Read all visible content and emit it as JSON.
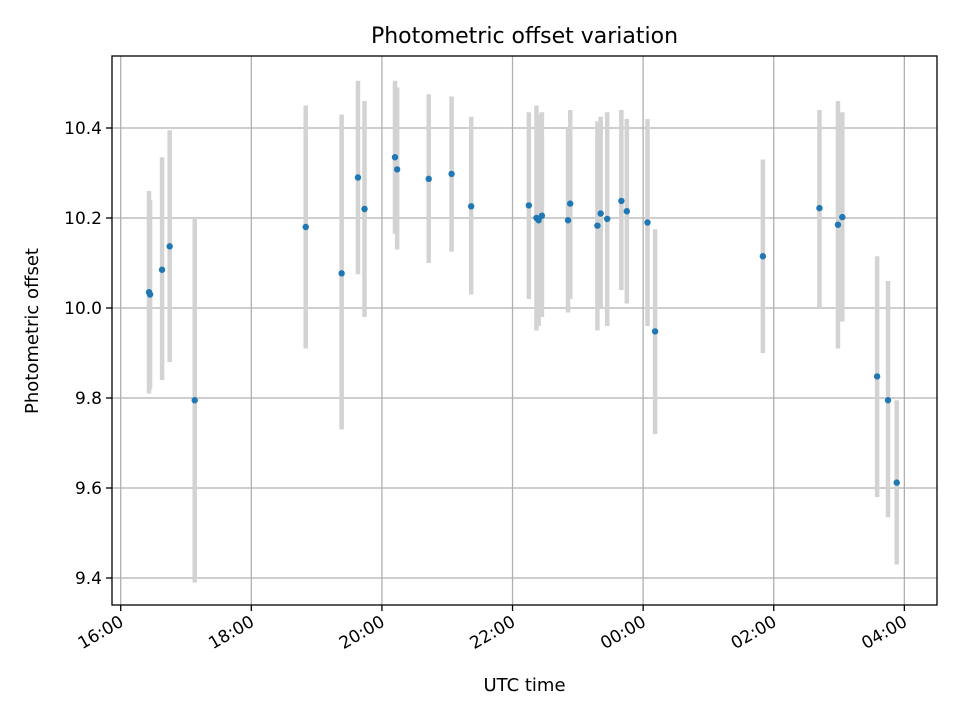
{
  "chart_data": {
    "type": "scatter",
    "title": "Photometric offset variation",
    "xlabel": "UTC time",
    "ylabel": "Photometric offset",
    "x_unit": "UTC time (hh:mm); a value past 24:00 falls on the following day",
    "xlim": [
      "15:52",
      "28:30"
    ],
    "ylim": [
      9.34,
      10.56
    ],
    "x_ticks": [
      "16:00",
      "18:00",
      "20:00",
      "22:00",
      "00:00",
      "02:00",
      "04:00"
    ],
    "y_ticks": [
      "9.4",
      "9.6",
      "9.8",
      "10.0",
      "10.2",
      "10.4"
    ],
    "grid": true,
    "colors": {
      "point": "#1f77b4",
      "errorbar": "#d3d3d3",
      "grid": "#b0b0b0"
    },
    "points": [
      {
        "x": "16:26",
        "y": 10.035,
        "low": 9.81,
        "high": 10.26
      },
      {
        "x": "16:27",
        "y": 10.03,
        "low": 9.82,
        "high": 10.24
      },
      {
        "x": "16:38",
        "y": 10.085,
        "low": 9.84,
        "high": 10.335
      },
      {
        "x": "16:45",
        "y": 10.137,
        "low": 9.88,
        "high": 10.395
      },
      {
        "x": "17:08",
        "y": 9.795,
        "low": 9.39,
        "high": 10.2
      },
      {
        "x": "18:50",
        "y": 10.18,
        "low": 9.91,
        "high": 10.45
      },
      {
        "x": "19:23",
        "y": 10.077,
        "low": 9.73,
        "high": 10.43
      },
      {
        "x": "19:38",
        "y": 10.29,
        "low": 10.075,
        "high": 10.505
      },
      {
        "x": "19:44",
        "y": 10.22,
        "low": 9.98,
        "high": 10.46
      },
      {
        "x": "20:12",
        "y": 10.335,
        "low": 10.165,
        "high": 10.505
      },
      {
        "x": "20:14",
        "y": 10.308,
        "low": 10.13,
        "high": 10.49
      },
      {
        "x": "20:43",
        "y": 10.287,
        "low": 10.1,
        "high": 10.475
      },
      {
        "x": "21:04",
        "y": 10.298,
        "low": 10.125,
        "high": 10.47
      },
      {
        "x": "21:22",
        "y": 10.226,
        "low": 10.03,
        "high": 10.425
      },
      {
        "x": "22:15",
        "y": 10.228,
        "low": 10.02,
        "high": 10.435
      },
      {
        "x": "22:22",
        "y": 10.2,
        "low": 9.95,
        "high": 10.45
      },
      {
        "x": "22:24",
        "y": 10.195,
        "low": 9.96,
        "high": 10.43
      },
      {
        "x": "22:27",
        "y": 10.205,
        "low": 9.98,
        "high": 10.435
      },
      {
        "x": "22:51",
        "y": 10.195,
        "low": 9.99,
        "high": 10.4
      },
      {
        "x": "22:53",
        "y": 10.232,
        "low": 10.02,
        "high": 10.44
      },
      {
        "x": "23:18",
        "y": 10.183,
        "low": 9.95,
        "high": 10.415
      },
      {
        "x": "23:21",
        "y": 10.21,
        "low": 10.0,
        "high": 10.425
      },
      {
        "x": "23:27",
        "y": 10.198,
        "low": 9.96,
        "high": 10.435
      },
      {
        "x": "23:40",
        "y": 10.238,
        "low": 10.04,
        "high": 10.44
      },
      {
        "x": "23:45",
        "y": 10.215,
        "low": 10.01,
        "high": 10.42
      },
      {
        "x": "00:04",
        "y": 10.19,
        "low": 9.96,
        "high": 10.42
      },
      {
        "x": "00:11",
        "y": 9.948,
        "low": 9.72,
        "high": 10.175
      },
      {
        "x": "01:50",
        "y": 10.115,
        "low": 9.9,
        "high": 10.33
      },
      {
        "x": "02:42",
        "y": 10.222,
        "low": 10.0,
        "high": 10.44
      },
      {
        "x": "02:59",
        "y": 10.185,
        "low": 9.91,
        "high": 10.46
      },
      {
        "x": "03:03",
        "y": 10.202,
        "low": 9.97,
        "high": 10.435
      },
      {
        "x": "03:35",
        "y": 9.848,
        "low": 9.58,
        "high": 10.115
      },
      {
        "x": "03:45",
        "y": 9.795,
        "low": 9.535,
        "high": 10.06
      },
      {
        "x": "03:53",
        "y": 9.612,
        "low": 9.43,
        "high": 9.795
      }
    ]
  }
}
